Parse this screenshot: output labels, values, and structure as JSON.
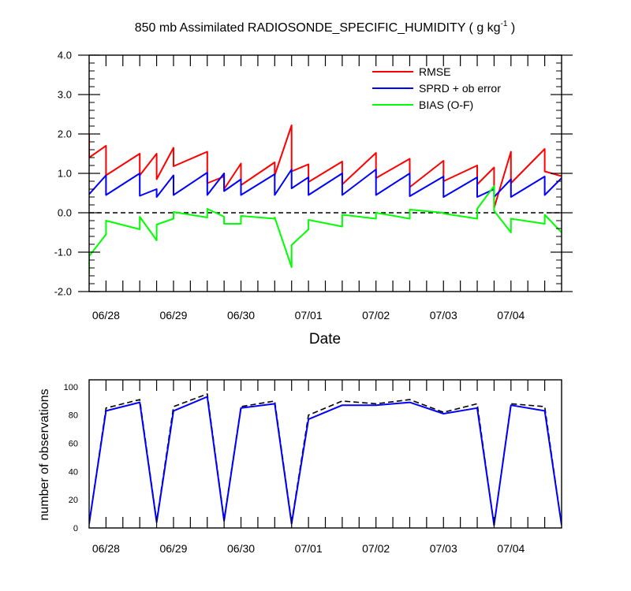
{
  "chart_data": [
    {
      "type": "line",
      "title": "850 mb Assimilated RADIOSONDE_SPECIFIC_HUMIDITY ( g kg",
      "title_sup": "-1",
      "title_end": " )",
      "xlabel": "Date",
      "ylabel": "",
      "ylim": [
        -2.0,
        4.0
      ],
      "xlim": [
        0,
        28
      ],
      "y_ticks": [
        -2.0,
        -1.0,
        0.0,
        1.0,
        2.0,
        3.0,
        4.0
      ],
      "y_tick_labels": [
        "-2.0",
        "-1.0",
        "0.0",
        "1.0",
        "2.0",
        "3.0",
        "4.0"
      ],
      "x_ticks": [
        1,
        5,
        9,
        13,
        17,
        21,
        25
      ],
      "x_tick_labels": [
        "06/28",
        "06/29",
        "06/30",
        "07/01",
        "07/02",
        "07/03",
        "07/04"
      ],
      "zero_line": true,
      "legend_position": "top-right",
      "series": [
        {
          "name": "RMSE",
          "color": "#ff0000",
          "x": [
            0,
            0,
            1,
            1,
            3,
            3,
            4,
            4,
            5,
            5,
            7,
            7,
            8,
            8,
            9,
            9,
            11,
            11,
            12,
            12,
            13,
            13,
            15,
            15,
            17,
            17,
            19,
            19,
            21,
            21,
            23,
            23,
            24,
            24,
            25,
            25,
            27,
            27,
            28
          ],
          "y": [
            2.0,
            1.4,
            1.7,
            0.95,
            1.5,
            0.95,
            1.5,
            0.85,
            1.65,
            1.18,
            1.55,
            0.75,
            0.92,
            0.6,
            1.25,
            0.7,
            1.28,
            0.95,
            2.22,
            1.05,
            1.23,
            0.78,
            1.3,
            0.72,
            1.52,
            0.88,
            1.37,
            0.65,
            1.32,
            0.8,
            1.2,
            0.72,
            1.15,
            0.12,
            1.55,
            0.75,
            1.62,
            1.05,
            0.93
          ]
        },
        {
          "name": "SPRD + ob error",
          "color": "#0000ff",
          "x": [
            0,
            1,
            1,
            3,
            3,
            4,
            4,
            5,
            5,
            7,
            7,
            8,
            8,
            9,
            9,
            11,
            11,
            12,
            12,
            13,
            13,
            15,
            15,
            17,
            17,
            19,
            19,
            21,
            21,
            23,
            23,
            24,
            24,
            25,
            25,
            27,
            27,
            28
          ],
          "y": [
            0.47,
            0.95,
            0.45,
            1.0,
            0.43,
            0.6,
            0.4,
            0.95,
            0.45,
            1.02,
            0.45,
            1.0,
            0.55,
            0.85,
            0.45,
            0.98,
            0.45,
            1.1,
            0.62,
            0.9,
            0.45,
            1.0,
            0.45,
            1.1,
            0.45,
            1.0,
            0.42,
            0.92,
            0.4,
            0.9,
            0.4,
            0.6,
            0.4,
            0.85,
            0.4,
            0.92,
            0.45,
            0.88
          ]
        },
        {
          "name": "BIAS (O-F)",
          "color": "#00ff00",
          "x": [
            0,
            0,
            1,
            1,
            3,
            3,
            4,
            4,
            5,
            5,
            7,
            7,
            8,
            8,
            9,
            9,
            11,
            11,
            12,
            12,
            13,
            13,
            15,
            15,
            17,
            17,
            19,
            19,
            21,
            21,
            23,
            23,
            24,
            24,
            25,
            25,
            27,
            27,
            28
          ],
          "y": [
            -1.55,
            -1.1,
            -0.55,
            -0.2,
            -0.42,
            -0.1,
            -0.7,
            -0.3,
            -0.15,
            0.02,
            -0.12,
            0.1,
            -0.1,
            -0.28,
            -0.28,
            -0.08,
            -0.15,
            -0.12,
            -1.38,
            -0.82,
            -0.42,
            -0.18,
            -0.35,
            -0.05,
            -0.15,
            0.0,
            -0.15,
            0.08,
            0.0,
            -0.02,
            -0.15,
            0.1,
            0.68,
            0.05,
            -0.5,
            -0.15,
            -0.28,
            -0.05,
            -0.5
          ]
        }
      ]
    },
    {
      "type": "line",
      "title": "",
      "xlabel": "",
      "ylabel": "number of observations",
      "ylim": [
        0,
        105
      ],
      "xlim": [
        0,
        28
      ],
      "y_ticks": [
        0,
        20,
        40,
        60,
        80,
        100
      ],
      "y_tick_labels": [
        "0",
        "20",
        "40",
        "60",
        "80",
        "100"
      ],
      "x_ticks": [
        1,
        5,
        9,
        13,
        17,
        21,
        25
      ],
      "x_tick_labels": [
        "06/28",
        "06/29",
        "06/30",
        "07/01",
        "07/02",
        "07/03",
        "07/04"
      ],
      "series": [
        {
          "style": "dashed",
          "color": "#000000",
          "x": [
            0,
            1,
            3,
            4,
            5,
            7,
            8,
            9,
            11,
            12,
            13,
            15,
            17,
            19,
            21,
            23,
            24,
            25,
            27,
            28
          ],
          "y": [
            3,
            85,
            91,
            5,
            86,
            95,
            6,
            86,
            90,
            4,
            80,
            90,
            88,
            91,
            82,
            88,
            2,
            88,
            86,
            2
          ]
        },
        {
          "style": "solid",
          "color": "#0000ff",
          "x": [
            0,
            1,
            3,
            4,
            5,
            7,
            8,
            9,
            11,
            12,
            13,
            15,
            17,
            19,
            21,
            23,
            24,
            25,
            27,
            28
          ],
          "y": [
            3,
            83,
            89,
            4,
            83,
            93,
            5,
            85,
            88,
            3,
            77,
            87,
            87,
            89,
            81,
            85,
            2,
            87,
            83,
            2
          ]
        }
      ]
    }
  ]
}
